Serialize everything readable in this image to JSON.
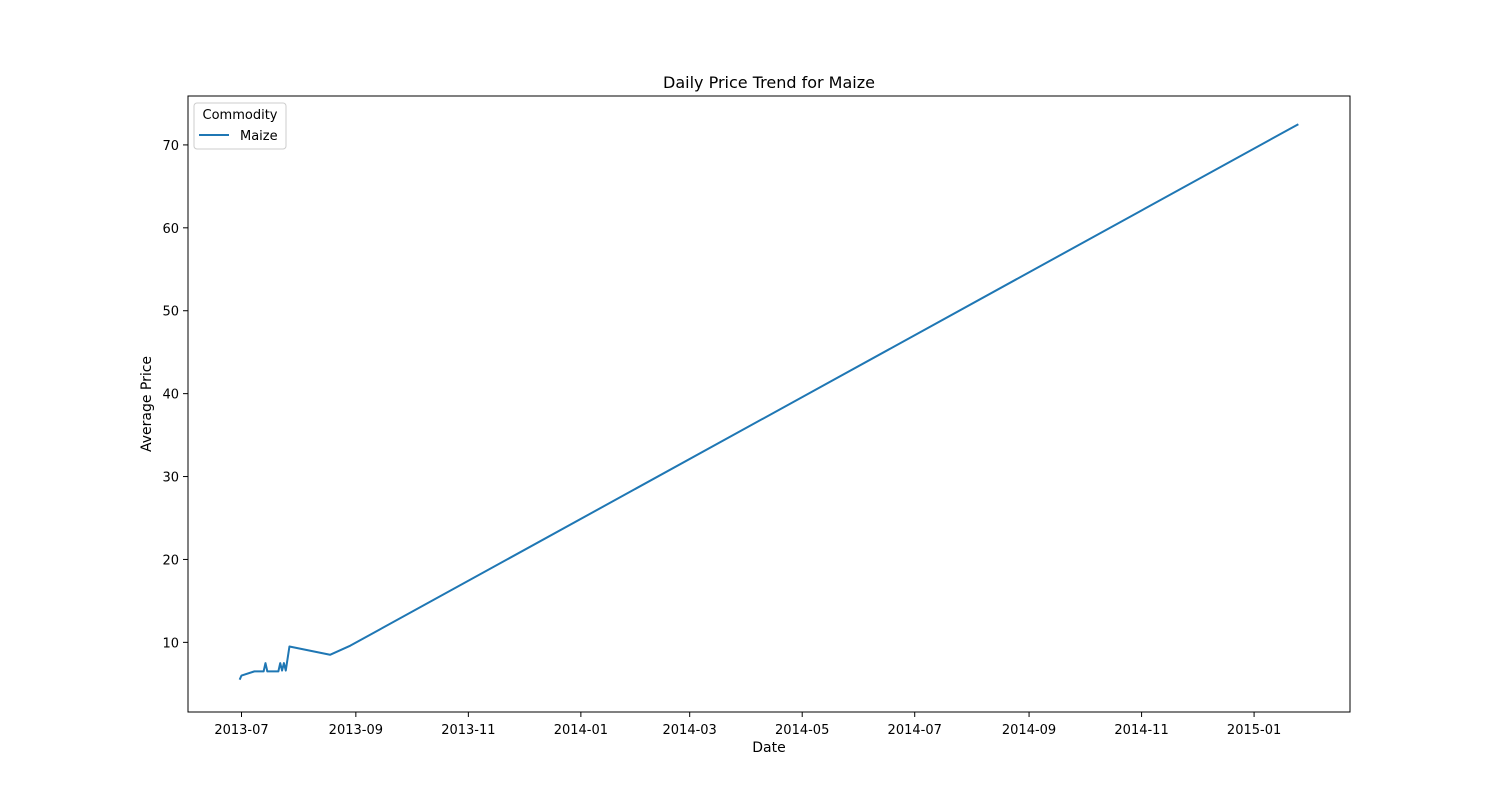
{
  "chart_data": {
    "type": "line",
    "title": "Daily Price Trend for Maize",
    "xlabel": "Date",
    "ylabel": "Average Price",
    "legend": {
      "title": "Commodity",
      "placement": "top-left"
    },
    "grid": false,
    "xlim": [
      "2013-06-02",
      "2015-02-22"
    ],
    "ylim": [
      1.6,
      75.9
    ],
    "x_ticks": [
      "2013-07",
      "2013-09",
      "2013-11",
      "2014-01",
      "2014-03",
      "2014-05",
      "2014-07",
      "2014-09",
      "2014-11",
      "2015-01"
    ],
    "y_ticks": [
      10,
      20,
      30,
      40,
      50,
      60,
      70
    ],
    "series": [
      {
        "name": "Maize",
        "color": "#1f77b4",
        "points": [
          {
            "x": "2013-06-30",
            "y": 5.5
          },
          {
            "x": "2013-07-01",
            "y": 6.0
          },
          {
            "x": "2013-07-08",
            "y": 6.5
          },
          {
            "x": "2013-07-13",
            "y": 6.5
          },
          {
            "x": "2013-07-14",
            "y": 7.5
          },
          {
            "x": "2013-07-15",
            "y": 6.5
          },
          {
            "x": "2013-07-21",
            "y": 6.5
          },
          {
            "x": "2013-07-22",
            "y": 7.5
          },
          {
            "x": "2013-07-23",
            "y": 6.6
          },
          {
            "x": "2013-07-24",
            "y": 7.5
          },
          {
            "x": "2013-07-25",
            "y": 6.6
          },
          {
            "x": "2013-07-27",
            "y": 9.5
          },
          {
            "x": "2013-08-18",
            "y": 8.5
          },
          {
            "x": "2013-08-29",
            "y": 9.6
          },
          {
            "x": "2015-01-25",
            "y": 72.5
          }
        ]
      }
    ]
  }
}
